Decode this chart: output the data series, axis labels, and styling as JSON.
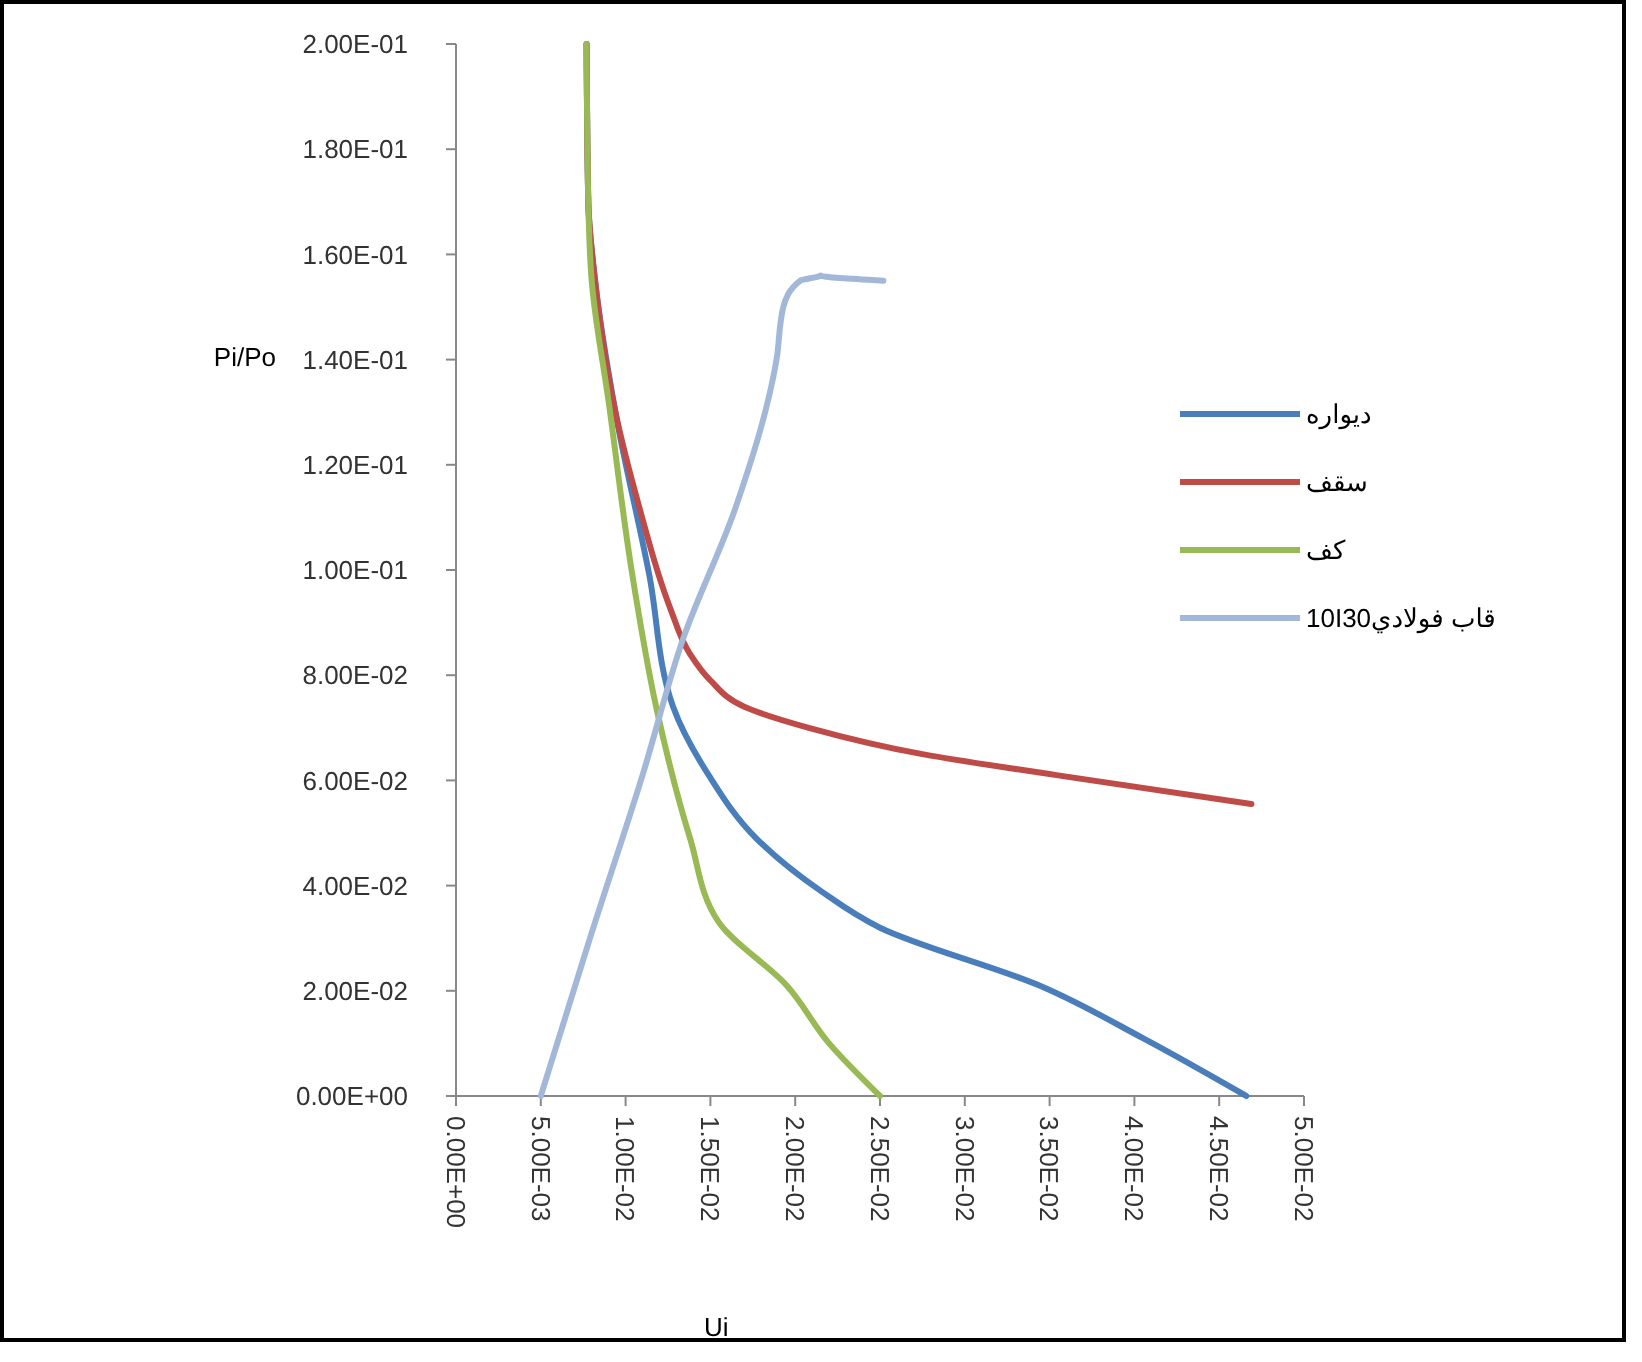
{
  "chart_data": {
    "type": "line",
    "xlabel": "Ui",
    "ylabel": "Pi/Po",
    "xlim": [
      0,
      0.05
    ],
    "ylim": [
      0,
      0.2
    ],
    "xticks": [
      {
        "value": 0,
        "label": "0.00E+00"
      },
      {
        "value": 0.005,
        "label": "5.00E-03"
      },
      {
        "value": 0.01,
        "label": "1.00E-02"
      },
      {
        "value": 0.015,
        "label": "1.50E-02"
      },
      {
        "value": 0.02,
        "label": "2.00E-02"
      },
      {
        "value": 0.025,
        "label": "2.50E-02"
      },
      {
        "value": 0.03,
        "label": "3.00E-02"
      },
      {
        "value": 0.035,
        "label": "3.50E-02"
      },
      {
        "value": 0.04,
        "label": "4.00E-02"
      },
      {
        "value": 0.045,
        "label": "4.50E-02"
      },
      {
        "value": 0.05,
        "label": "5.00E-02"
      }
    ],
    "yticks": [
      {
        "value": 0,
        "label": "0.00E+00"
      },
      {
        "value": 0.02,
        "label": "2.00E-02"
      },
      {
        "value": 0.04,
        "label": "4.00E-02"
      },
      {
        "value": 0.06,
        "label": "6.00E-02"
      },
      {
        "value": 0.08,
        "label": "8.00E-02"
      },
      {
        "value": 0.1,
        "label": "1.00E-01"
      },
      {
        "value": 0.12,
        "label": "1.20E-01"
      },
      {
        "value": 0.14,
        "label": "1.40E-01"
      },
      {
        "value": 0.16,
        "label": "1.60E-01"
      },
      {
        "value": 0.18,
        "label": "1.80E-01"
      },
      {
        "value": 0.2,
        "label": "2.00E-01"
      }
    ],
    "grid": false,
    "legend": "right",
    "marker": "none",
    "line_style": "solid",
    "series": [
      {
        "name": "ديواره",
        "color": "#4a7ebb",
        "x": [
          0.0077,
          0.0078,
          0.0082,
          0.0094,
          0.0114,
          0.0128,
          0.0149,
          0.0177,
          0.0215,
          0.025,
          0.0344,
          0.0405,
          0.0466
        ],
        "values": [
          0.2,
          0.17,
          0.155,
          0.13,
          0.099,
          0.074,
          0.061,
          0.049,
          0.039,
          0.032,
          0.021,
          0.011,
          0
        ]
      },
      {
        "name": "سقف",
        "color": "#be4b48",
        "x": [
          0.0077,
          0.0078,
          0.0082,
          0.0094,
          0.0108,
          0.0126,
          0.0138,
          0.015,
          0.017,
          0.0208,
          0.0275,
          0.0354,
          0.0469
        ],
        "values": [
          0.2,
          0.17,
          0.155,
          0.13,
          0.112,
          0.093,
          0.084,
          0.079,
          0.074,
          0.07,
          0.065,
          0.061,
          0.0555
        ]
      },
      {
        "name": "كف",
        "color": "#98b954",
        "x": [
          0.0077,
          0.0078,
          0.008,
          0.009,
          0.0104,
          0.0118,
          0.0138,
          0.0155,
          0.0195,
          0.022,
          0.025
        ],
        "values": [
          0.2,
          0.17,
          0.155,
          0.132,
          0.099,
          0.074,
          0.049,
          0.033,
          0.021,
          0.01,
          0
        ]
      },
      {
        "name": "قاب فولادي10I30",
        "color": "#a3b7d8",
        "x": [
          0.005,
          0.0079,
          0.011,
          0.0134,
          0.0165,
          0.0189,
          0.0193,
          0.0203,
          0.0215,
          0.0252
        ],
        "values": [
          0,
          0.03,
          0.061,
          0.087,
          0.112,
          0.14,
          0.15,
          0.155,
          0.156,
          0.155
        ]
      }
    ]
  }
}
